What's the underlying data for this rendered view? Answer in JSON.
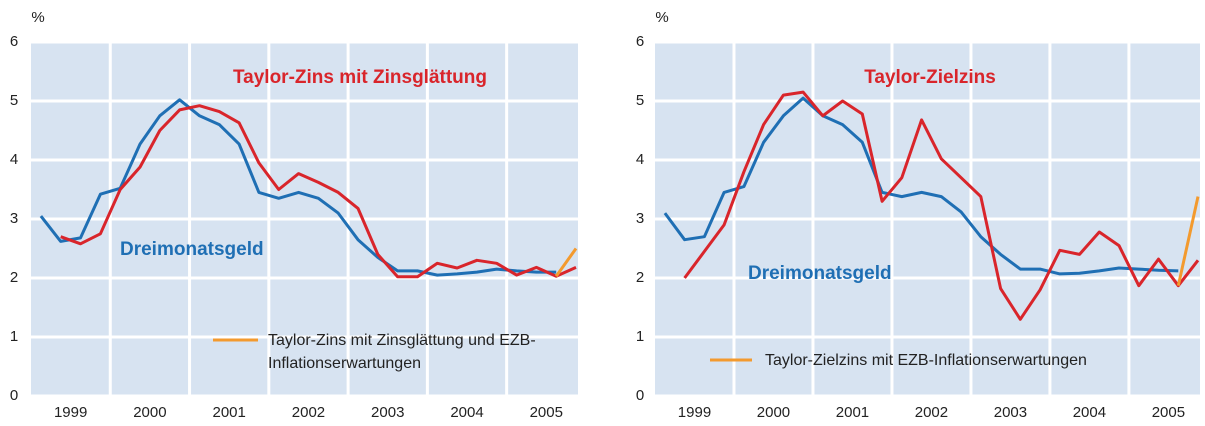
{
  "chart_data": [
    {
      "type": "line",
      "y_label": "%",
      "x": [
        1999.125,
        1999.375,
        1999.625,
        1999.875,
        2000.125,
        2000.375,
        2000.625,
        2000.875,
        2001.125,
        2001.375,
        2001.625,
        2001.875,
        2002.125,
        2002.375,
        2002.625,
        2002.875,
        2003.125,
        2003.375,
        2003.625,
        2003.875,
        2004.125,
        2004.375,
        2004.625,
        2004.875,
        2005.125,
        2005.375,
        2005.625,
        2005.875
      ],
      "xlim": [
        1999,
        2005.9
      ],
      "xticks": [
        {
          "value": 1999.5,
          "label": "1999"
        },
        {
          "value": 2000.5,
          "label": "2000"
        },
        {
          "value": 2001.5,
          "label": "2001"
        },
        {
          "value": 2002.5,
          "label": "2002"
        },
        {
          "value": 2003.5,
          "label": "2003"
        },
        {
          "value": 2004.5,
          "label": "2004"
        },
        {
          "value": 2005.5,
          "label": "2005"
        }
      ],
      "ylim": [
        0,
        6
      ],
      "yticks": [
        0,
        1,
        2,
        3,
        4,
        5,
        6
      ],
      "grid": true,
      "series": [
        {
          "name": "Dreimonatsgeld",
          "color": "#1f6fb4",
          "values": [
            3.05,
            2.62,
            2.68,
            3.42,
            3.52,
            4.27,
            4.75,
            5.02,
            4.75,
            4.6,
            4.27,
            3.45,
            3.35,
            3.45,
            3.35,
            3.1,
            2.65,
            2.35,
            2.12,
            2.12,
            2.05,
            2.07,
            2.1,
            2.15,
            2.12,
            2.1,
            2.1,
            null
          ]
        },
        {
          "name": "Taylor-Zins mit Zinsglättung",
          "color": "#d9252b",
          "values": [
            null,
            2.7,
            2.58,
            2.75,
            3.5,
            3.88,
            4.5,
            4.85,
            4.92,
            4.82,
            4.63,
            3.95,
            3.5,
            3.77,
            3.62,
            3.45,
            3.18,
            2.4,
            2.02,
            2.02,
            2.25,
            2.17,
            2.3,
            2.25,
            2.05,
            2.18,
            2.03,
            2.18
          ]
        },
        {
          "name": "Taylor-Zins mit Zinsglättung und EZB-Inflationserwartungen",
          "color": "#f39a2e",
          "values": [
            null,
            null,
            null,
            null,
            null,
            null,
            null,
            null,
            null,
            null,
            null,
            null,
            null,
            null,
            null,
            null,
            null,
            null,
            null,
            null,
            null,
            null,
            null,
            null,
            null,
            null,
            2.03,
            2.5
          ]
        }
      ]
    },
    {
      "type": "line",
      "y_label": "%",
      "x": [
        1999.125,
        1999.375,
        1999.625,
        1999.875,
        2000.125,
        2000.375,
        2000.625,
        2000.875,
        2001.125,
        2001.375,
        2001.625,
        2001.875,
        2002.125,
        2002.375,
        2002.625,
        2002.875,
        2003.125,
        2003.375,
        2003.625,
        2003.875,
        2004.125,
        2004.375,
        2004.625,
        2004.875,
        2005.125,
        2005.375,
        2005.625,
        2005.875
      ],
      "xlim": [
        1999,
        2005.9
      ],
      "xticks": [
        {
          "value": 1999.5,
          "label": "1999"
        },
        {
          "value": 2000.5,
          "label": "2000"
        },
        {
          "value": 2001.5,
          "label": "2001"
        },
        {
          "value": 2002.5,
          "label": "2002"
        },
        {
          "value": 2003.5,
          "label": "2003"
        },
        {
          "value": 2004.5,
          "label": "2004"
        },
        {
          "value": 2005.5,
          "label": "2005"
        }
      ],
      "ylim": [
        0,
        6
      ],
      "yticks": [
        0,
        1,
        2,
        3,
        4,
        5,
        6
      ],
      "grid": true,
      "series": [
        {
          "name": "Dreimonatsgeld",
          "color": "#1f6fb4",
          "values": [
            3.1,
            2.65,
            2.7,
            3.45,
            3.55,
            4.3,
            4.75,
            5.05,
            4.75,
            4.6,
            4.3,
            3.45,
            3.38,
            3.45,
            3.38,
            3.12,
            2.7,
            2.4,
            2.15,
            2.15,
            2.07,
            2.08,
            2.12,
            2.17,
            2.15,
            2.13,
            2.12,
            null
          ]
        },
        {
          "name": "Taylor-Zielzins",
          "color": "#d9252b",
          "values": [
            null,
            2.0,
            2.45,
            2.9,
            3.8,
            4.6,
            5.1,
            5.15,
            4.75,
            5.0,
            4.78,
            3.3,
            3.7,
            4.68,
            4.02,
            3.7,
            3.38,
            1.82,
            1.3,
            1.8,
            2.47,
            2.4,
            2.78,
            2.55,
            1.87,
            2.32,
            1.87,
            2.3
          ]
        },
        {
          "name": "Taylor-Zielzins mit EZB-Inflationserwartungen",
          "color": "#f39a2e",
          "values": [
            null,
            null,
            null,
            null,
            null,
            null,
            null,
            null,
            null,
            null,
            null,
            null,
            null,
            null,
            null,
            null,
            null,
            null,
            null,
            null,
            null,
            null,
            null,
            null,
            null,
            null,
            1.87,
            3.38
          ]
        }
      ]
    }
  ]
}
